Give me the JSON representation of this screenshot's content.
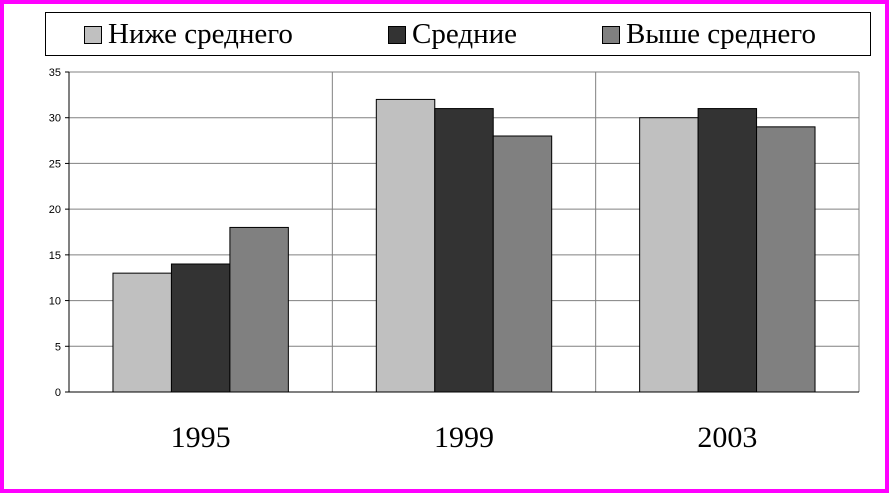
{
  "chart_data": {
    "type": "bar",
    "categories": [
      "1995",
      "1999",
      "2003"
    ],
    "series": [
      {
        "name": "Ниже среднего",
        "values": [
          13,
          32,
          30
        ],
        "color": "#c0c0c0"
      },
      {
        "name": "Средние",
        "values": [
          14,
          31,
          31
        ],
        "color": "#333333"
      },
      {
        "name": "Выше среднего",
        "values": [
          18,
          28,
          29
        ],
        "color": "#808080"
      }
    ],
    "ylim": [
      0,
      35
    ],
    "yticks": [
      "0",
      "5",
      "10",
      "15",
      "20",
      "25",
      "30",
      "35"
    ],
    "grid": true,
    "legend_position": "top",
    "frame_color": "#ff00ff"
  }
}
